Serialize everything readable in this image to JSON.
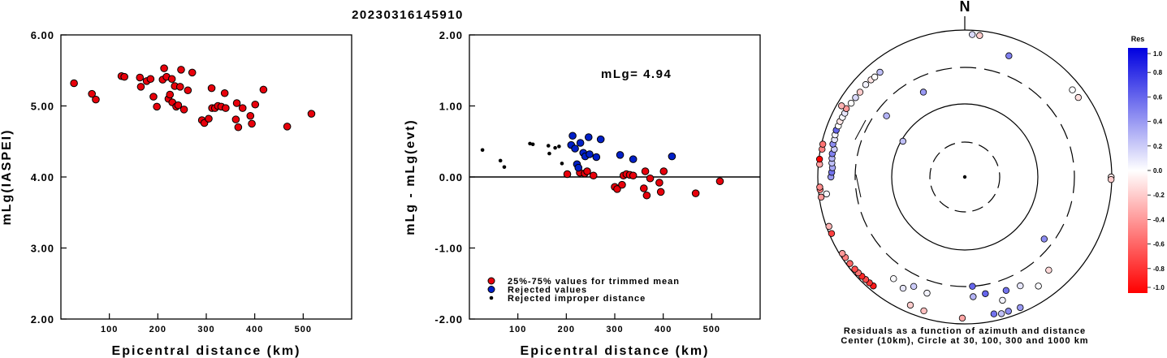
{
  "chart_data": [
    {
      "type": "scatter",
      "title": "20230316145910",
      "xlabel": "Epicentral distance (km)",
      "ylabel": "mLg(IASPEI)",
      "xlim": [
        0,
        600
      ],
      "ylim": [
        2.0,
        6.0
      ],
      "xticks": [
        "100",
        "200",
        "300",
        "400",
        "500"
      ],
      "yticks": [
        "2.00",
        "3.00",
        "4.00",
        "5.00",
        "6.00"
      ],
      "grid": false,
      "marker_color": "#e8000b",
      "points": [
        [
          27,
          5.32
        ],
        [
          64,
          5.17
        ],
        [
          72,
          5.09
        ],
        [
          125,
          5.42
        ],
        [
          131,
          5.41
        ],
        [
          163,
          5.4
        ],
        [
          165,
          5.27
        ],
        [
          177,
          5.35
        ],
        [
          185,
          5.38
        ],
        [
          191,
          5.13
        ],
        [
          198,
          4.99
        ],
        [
          210,
          5.37
        ],
        [
          213,
          5.53
        ],
        [
          218,
          5.41
        ],
        [
          222,
          5.1
        ],
        [
          225,
          5.16
        ],
        [
          229,
          5.38
        ],
        [
          230,
          5.05
        ],
        [
          235,
          5.28
        ],
        [
          238,
          4.99
        ],
        [
          242,
          5.01
        ],
        [
          246,
          5.27
        ],
        [
          248,
          5.51
        ],
        [
          254,
          4.95
        ],
        [
          262,
          5.22
        ],
        [
          271,
          5.47
        ],
        [
          291,
          4.8
        ],
        [
          296,
          4.76
        ],
        [
          305,
          4.82
        ],
        [
          311,
          5.25
        ],
        [
          312,
          4.97
        ],
        [
          318,
          4.97
        ],
        [
          324,
          5.0
        ],
        [
          331,
          4.99
        ],
        [
          338,
          5.18
        ],
        [
          340,
          4.97
        ],
        [
          361,
          4.81
        ],
        [
          363,
          5.04
        ],
        [
          366,
          4.7
        ],
        [
          375,
          4.97
        ],
        [
          391,
          4.86
        ],
        [
          394,
          4.75
        ],
        [
          401,
          5.02
        ],
        [
          418,
          5.23
        ],
        [
          467,
          4.71
        ],
        [
          517,
          4.89
        ]
      ]
    },
    {
      "type": "scatter",
      "xlabel": "Epicentral distance (km)",
      "ylabel": "mLg - mLg(evt)",
      "xlim": [
        0,
        600
      ],
      "ylim": [
        -2.0,
        2.0
      ],
      "xticks": [
        "100",
        "200",
        "300",
        "400",
        "500"
      ],
      "yticks": [
        "-2.00",
        "-1.00",
        "0.00",
        "1.00",
        "2.00"
      ],
      "annotation": "mLg= 4.94",
      "reference_line": 0.0,
      "legend": [
        {
          "label": "25%-75% values for trimmed mean",
          "color": "#e8000b"
        },
        {
          "label": "Rejected values",
          "color": "#0020c8"
        },
        {
          "label": "Rejected improper distance",
          "color": "#000000"
        }
      ],
      "legend_position": "bottom-left",
      "series": [
        {
          "color": "#e8000b",
          "points": [
            [
              202,
              0.04
            ],
            [
              228,
              0.06
            ],
            [
              238,
              0.05
            ],
            [
              243,
              0.08
            ],
            [
              256,
              0.02
            ],
            [
              300,
              -0.14
            ],
            [
              305,
              -0.17
            ],
            [
              315,
              -0.11
            ],
            [
              318,
              0.02
            ],
            [
              324,
              0.04
            ],
            [
              331,
              0.03
            ],
            [
              338,
              0.02
            ],
            [
              360,
              -0.16
            ],
            [
              363,
              0.08
            ],
            [
              366,
              -0.26
            ],
            [
              373,
              -0.02
            ],
            [
              392,
              -0.08
            ],
            [
              395,
              -0.21
            ],
            [
              401,
              0.08
            ],
            [
              467,
              -0.23
            ],
            [
              517,
              -0.06
            ]
          ]
        },
        {
          "color": "#0020c8",
          "points": [
            [
              210,
              0.45
            ],
            [
              213,
              0.58
            ],
            [
              218,
              0.4
            ],
            [
              222,
              0.18
            ],
            [
              225,
              0.13
            ],
            [
              229,
              0.48
            ],
            [
              235,
              0.34
            ],
            [
              239,
              0.29
            ],
            [
              246,
              0.56
            ],
            [
              248,
              0.32
            ],
            [
              262,
              0.28
            ],
            [
              271,
              0.53
            ],
            [
              311,
              0.31
            ],
            [
              338,
              0.25
            ],
            [
              418,
              0.29
            ]
          ]
        },
        {
          "color": "#000000",
          "points": [
            [
              27,
              0.38
            ],
            [
              64,
              0.23
            ],
            [
              72,
              0.14
            ],
            [
              125,
              0.47
            ],
            [
              131,
              0.46
            ],
            [
              163,
              0.44
            ],
            [
              165,
              0.33
            ],
            [
              177,
              0.41
            ],
            [
              185,
              0.43
            ],
            [
              191,
              0.19
            ]
          ]
        }
      ]
    },
    {
      "type": "polar-scatter",
      "north_label": "N",
      "caption_lines": [
        "Residuals as a function of azimuth and distance",
        "Center (10km), Circle at 30, 100, 300 and 1000 km"
      ],
      "colorbar_title": "Res",
      "colorbar_ticks": [
        "1.0",
        "0.8",
        "0.6",
        "0.4",
        "0.2",
        "0.0",
        "-0.2",
        "-0.4",
        "-0.6",
        "-0.8",
        "-1.0"
      ],
      "colorbar_range": [
        -1.0,
        1.0
      ],
      "residual_colors": {
        "positive": "#0000e0",
        "zero": "#ffffff",
        "negative": "#ff0000"
      },
      "distance_rings_km": [
        30,
        100,
        300,
        1000
      ],
      "center_km": 10,
      "stations": [
        {
          "az": 3,
          "dist": 870,
          "res": 0.15
        },
        {
          "az": 6,
          "dist": 860,
          "res": -0.2
        },
        {
          "az": 20,
          "dist": 560,
          "res": 0.5
        },
        {
          "az": 51,
          "dist": 760,
          "res": 0.01
        },
        {
          "az": 55,
          "dist": 763,
          "res": -0.12
        },
        {
          "az": 308,
          "dist": 220,
          "res": 0.3
        },
        {
          "az": 334,
          "dist": 190,
          "res": 0.4
        },
        {
          "az": 300,
          "dist": 95,
          "res": 0.25
        },
        {
          "az": 128,
          "dist": 230,
          "res": 0.45
        },
        {
          "az": 153,
          "dist": 450,
          "res": 0.1
        },
        {
          "az": 160,
          "dist": 430,
          "res": 0.55
        },
        {
          "az": 163,
          "dist": 560,
          "res": 0.05
        },
        {
          "az": 170,
          "dist": 400,
          "res": 0.6
        },
        {
          "az": 176,
          "dist": 300,
          "res": 0.6
        },
        {
          "az": 146,
          "dist": 610,
          "res": 0.02
        },
        {
          "az": 138,
          "dist": 500,
          "res": -0.15
        },
        {
          "az": 176,
          "dist": 420,
          "res": 0.3
        },
        {
          "az": 168,
          "dist": 800,
          "res": 0.55
        },
        {
          "az": 162,
          "dist": 830,
          "res": 0.45
        },
        {
          "az": 165,
          "dist": 840,
          "res": 0.25
        },
        {
          "az": 157,
          "dist": 850,
          "res": 0.4
        },
        {
          "az": 181,
          "dist": 830,
          "res": -0.35
        },
        {
          "az": 197,
          "dist": 800,
          "res": -0.25
        },
        {
          "az": 203,
          "dist": 780,
          "res": -0.2
        },
        {
          "az": 198,
          "dist": 450,
          "res": 0.05
        },
        {
          "az": 205,
          "dist": 430,
          "res": 0.2
        },
        {
          "az": 215,
          "dist": 480,
          "res": 0.02
        },
        {
          "az": 209,
          "dist": 530,
          "res": 0.1
        },
        {
          "az": 220,
          "dist": 860,
          "res": -0.9
        },
        {
          "az": 222,
          "dist": 865,
          "res": -0.8
        },
        {
          "az": 224,
          "dist": 870,
          "res": -0.7
        },
        {
          "az": 226,
          "dist": 880,
          "res": -0.85
        },
        {
          "az": 228,
          "dist": 890,
          "res": -0.55
        },
        {
          "az": 230,
          "dist": 895,
          "res": -0.7
        },
        {
          "az": 233,
          "dist": 905,
          "res": -0.6
        },
        {
          "az": 236,
          "dist": 910,
          "res": -0.5
        },
        {
          "az": 238,
          "dist": 920,
          "res": -0.4
        },
        {
          "az": 247,
          "dist": 930,
          "res": -0.75
        },
        {
          "az": 250,
          "dist": 925,
          "res": -0.3
        },
        {
          "az": 262,
          "dist": 940,
          "res": -0.4
        },
        {
          "az": 265,
          "dist": 945,
          "res": -0.5
        },
        {
          "az": 266,
          "dist": 950,
          "res": -0.45
        },
        {
          "az": 275,
          "dist": 960,
          "res": -0.35
        },
        {
          "az": 281,
          "dist": 950,
          "res": -0.5
        },
        {
          "az": 283,
          "dist": 960,
          "res": -0.55
        },
        {
          "az": 277,
          "dist": 980,
          "res": -1.0
        },
        {
          "az": 263,
          "dist": 780,
          "res": 0.03
        },
        {
          "az": 270,
          "dist": 655,
          "res": 0.4
        },
        {
          "az": 272,
          "dist": 640,
          "res": 0.55
        },
        {
          "az": 274,
          "dist": 630,
          "res": 0.35
        },
        {
          "az": 276,
          "dist": 650,
          "res": 0.25
        },
        {
          "az": 278,
          "dist": 660,
          "res": 0.3
        },
        {
          "az": 280,
          "dist": 670,
          "res": 0.5
        },
        {
          "az": 282,
          "dist": 645,
          "res": 0.2
        },
        {
          "az": 284,
          "dist": 700,
          "res": 0.45
        },
        {
          "az": 286,
          "dist": 690,
          "res": 0.1
        },
        {
          "az": 288,
          "dist": 710,
          "res": 0.05
        },
        {
          "az": 290,
          "dist": 720,
          "res": 0.6
        },
        {
          "az": 292,
          "dist": 710,
          "res": 0.0
        },
        {
          "az": 294,
          "dist": 715,
          "res": -0.1
        },
        {
          "az": 296,
          "dist": 705,
          "res": 0.03
        },
        {
          "az": 298,
          "dist": 700,
          "res": 0.1
        },
        {
          "az": 300,
          "dist": 720,
          "res": -0.4
        },
        {
          "az": 303,
          "dist": 690,
          "res": 0.0
        },
        {
          "az": 306,
          "dist": 680,
          "res": 0.15
        },
        {
          "az": 309,
          "dist": 675,
          "res": -0.2
        },
        {
          "az": 313,
          "dist": 690,
          "res": 0.05
        },
        {
          "az": 316,
          "dist": 680,
          "res": -0.1
        },
        {
          "az": 318,
          "dist": 670,
          "res": 0.0
        },
        {
          "az": 321,
          "dist": 675,
          "res": 0.25
        },
        {
          "az": 300,
          "dist": 860,
          "res": -0.3
        },
        {
          "az": 90,
          "dist": 980,
          "res": -0.1
        },
        {
          "az": 91,
          "dist": 978,
          "res": -0.2
        }
      ]
    }
  ]
}
